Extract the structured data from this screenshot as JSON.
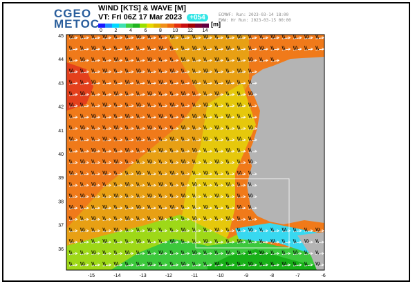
{
  "logo": {
    "line1": "CGEO",
    "line2": "METOC"
  },
  "product": {
    "title": "WIND [KTS] & WAVE [M]",
    "valid_time": "VT:  Fri 06Z 17 Mar 2023",
    "forecast_hour": "+054"
  },
  "run_info": [
    "ECMWF:  Run: 2023-03-14 18:00",
    "EWW:  Hr Run: 2023-03-15 00:00"
  ],
  "colorbar": {
    "unit": "[m]",
    "ticks": [
      "0",
      "2",
      "4",
      "6",
      "8",
      "10",
      "12",
      "14"
    ],
    "colors": [
      "#1a1aff",
      "#1e90ff",
      "#00d8ff",
      "#3fe0b0",
      "#40d040",
      "#21b421",
      "#99e000",
      "#e6d800",
      "#e0b400",
      "#f0901a",
      "#ee6a10",
      "#e43010",
      "#c81010",
      "#a00000",
      "#7a0030",
      "#600040"
    ]
  },
  "map": {
    "lat_labels": [
      "45",
      "44",
      "43",
      "42",
      "41",
      "40",
      "39",
      "38",
      "37",
      "36"
    ],
    "lon_labels": [
      "-15",
      "-14",
      "-13",
      "-12",
      "-11",
      "-10",
      "-9",
      "-8",
      "-7",
      "-6"
    ],
    "land_color": "#b4b4b4",
    "wave_colors": {
      "high": "#e4401c",
      "orange": "#f07a1a",
      "amber": "#e8a014",
      "yellow": "#e6c80c",
      "lime": "#9ed818",
      "green": "#3cc83c",
      "darkgreen": "#18b018",
      "cyan": "#38d8f0"
    }
  }
}
